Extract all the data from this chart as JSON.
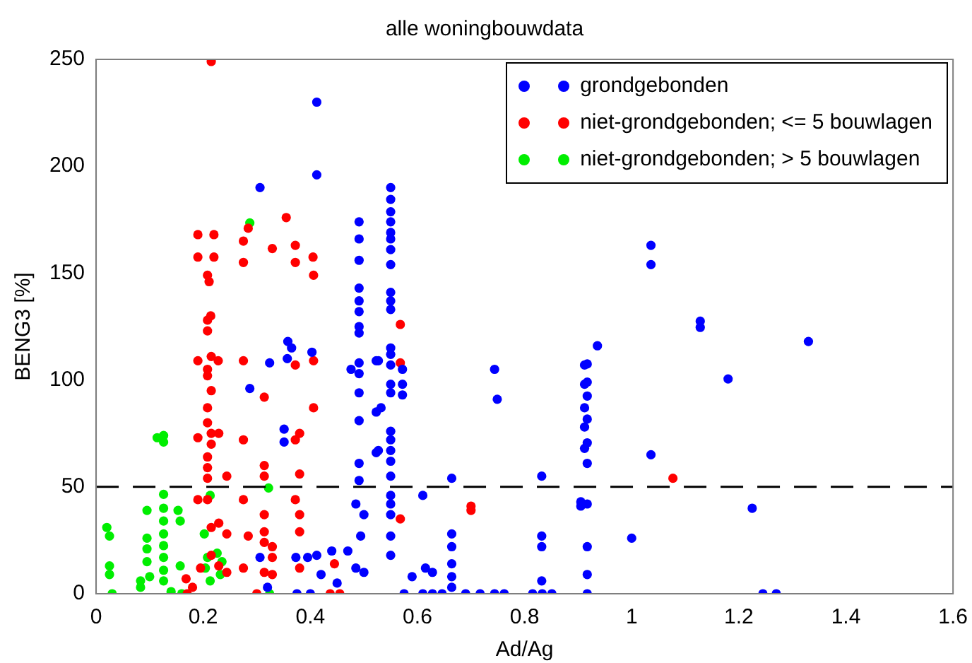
{
  "chart_data": {
    "type": "scatter",
    "title": "alle woningbouwdata",
    "xlabel": "Ad/Ag",
    "ylabel": "BENG3 [%]",
    "xlim": [
      0,
      1.6
    ],
    "xticks": [
      0,
      0.2,
      0.4,
      0.6,
      0.8,
      1,
      1.2,
      1.4,
      1.6
    ],
    "ylim": [
      0,
      250
    ],
    "yticks": [
      0,
      50,
      100,
      150,
      200,
      250
    ],
    "grid": false,
    "legend": "top right",
    "marker": "circle",
    "ref_lines": [
      {
        "axis": "y",
        "value": 50,
        "color": "#000000",
        "line_style": "dashed"
      }
    ],
    "series": [
      {
        "name": "grondgebonden",
        "color": "#0000ff",
        "x": [
          0.412,
          0.412,
          0.306,
          0.491,
          0.491,
          0.491,
          0.491,
          0.491,
          0.491,
          0.491,
          0.491,
          0.491,
          0.491,
          0.491,
          0.491,
          0.476,
          0.358,
          0.365,
          0.357,
          0.403,
          0.324,
          0.287,
          0.351,
          0.351,
          0.523,
          0.523,
          0.523,
          0.491,
          0.491,
          0.306,
          0.32,
          0.373,
          0.395,
          0.412,
          0.42,
          0.44,
          0.45,
          0.375,
          0.4,
          0.47,
          0.485,
          0.494,
          0.5,
          0.485,
          0.5,
          0.55,
          0.55,
          0.55,
          0.55,
          0.55,
          0.55,
          0.55,
          0.55,
          0.55,
          0.55,
          0.55,
          0.55,
          0.55,
          0.55,
          0.55,
          0.55,
          0.55,
          0.55,
          0.55,
          0.55,
          0.55,
          0.55,
          0.55,
          0.55,
          0.55,
          0.55,
          0.527,
          0.532,
          0.527,
          0.572,
          0.572,
          0.572,
          0.744,
          0.749,
          0.664,
          0.61,
          0.664,
          0.664,
          0.664,
          0.664,
          0.664,
          0.59,
          0.615,
          0.628,
          0.832,
          0.832,
          0.832,
          0.832,
          0.912,
          0.912,
          0.912,
          0.912,
          0.912,
          0.905,
          0.575,
          0.61,
          0.628,
          0.646,
          0.69,
          0.717,
          0.744,
          0.762,
          0.815,
          0.833,
          0.851,
          1.036,
          1.036,
          1.128,
          1.128,
          1.33,
          0.936,
          0.917,
          0.917,
          0.917,
          0.917,
          0.917,
          0.917,
          1.18,
          1.036,
          0.905,
          0.917,
          1.225,
          1.0,
          0.917,
          0.917,
          0.917,
          1.245,
          1.27
        ],
        "values": [
          230,
          196,
          190,
          174,
          166,
          156,
          143,
          137,
          132,
          125,
          122,
          108,
          103,
          94,
          81,
          105,
          118,
          115,
          110,
          113,
          108,
          96,
          77,
          71,
          109,
          85,
          66,
          61,
          53,
          17,
          3,
          17,
          17,
          18,
          9,
          20,
          5,
          0,
          0,
          20,
          12,
          27,
          10,
          42,
          37,
          190,
          184.5,
          178.7,
          174,
          169,
          166,
          161,
          154,
          141,
          137,
          133,
          115,
          112,
          107,
          98,
          94,
          76,
          72,
          67,
          62,
          55,
          46,
          42,
          37,
          27,
          18,
          109,
          87,
          67,
          105,
          98,
          93,
          105,
          91,
          54,
          46,
          28,
          22,
          14,
          8,
          3,
          8,
          12,
          10,
          55,
          27,
          22,
          6,
          107,
          98,
          87,
          78,
          68,
          43,
          0,
          0,
          0,
          0,
          0,
          0,
          0,
          0,
          0,
          0,
          0,
          163,
          154,
          127.5,
          124.6,
          118,
          116,
          107.5,
          99,
          92.5,
          81.7,
          70.6,
          61,
          100.5,
          65,
          41,
          42,
          40,
          26,
          22,
          9,
          0,
          0,
          0
        ]
      },
      {
        "name": "niet-grondgebonden; <= 5 bouwlagen",
        "color": "#ff0000",
        "x": [
          0.215,
          0.19,
          0.22,
          0.19,
          0.22,
          0.208,
          0.211,
          0.214,
          0.208,
          0.208,
          0.19,
          0.215,
          0.228,
          0.208,
          0.208,
          0.215,
          0.208,
          0.208,
          0.215,
          0.229,
          0.215,
          0.208,
          0.208,
          0.208,
          0.244,
          0.208,
          0.215,
          0.229,
          0.244,
          0.215,
          0.229,
          0.244,
          0.19,
          0.19,
          0.275,
          0.284,
          0.275,
          0.275,
          0.275,
          0.275,
          0.284,
          0.275,
          0.355,
          0.329,
          0.372,
          0.372,
          0.405,
          0.406,
          0.372,
          0.406,
          0.314,
          0.406,
          0.38,
          0.372,
          0.38,
          0.314,
          0.314,
          0.372,
          0.38,
          0.38,
          0.314,
          0.314,
          0.314,
          0.329,
          0.329,
          0.314,
          0.329,
          0.38,
          0.445,
          0.168,
          0.18,
          0.17,
          0.195,
          0.3,
          0.437,
          0.455,
          0.568,
          0.568,
          0.568,
          0.7,
          0.7,
          1.077
        ],
        "values": [
          249,
          168,
          168,
          157.5,
          157.5,
          149,
          146,
          130,
          128,
          123,
          109,
          111,
          109,
          105,
          102,
          95,
          87,
          80,
          75,
          75,
          70,
          64,
          59,
          54,
          55,
          44,
          31,
          33,
          28,
          18,
          13,
          10,
          73,
          44,
          165,
          171,
          155,
          109,
          72,
          44,
          27,
          12,
          176,
          161.5,
          163,
          155,
          157.5,
          149,
          107,
          109,
          92,
          87,
          75,
          72,
          56,
          60,
          55,
          44,
          37,
          29,
          37,
          29,
          24,
          22,
          17,
          10,
          9,
          12,
          14,
          7,
          3,
          0,
          12,
          0,
          0,
          0,
          126,
          108,
          35,
          41,
          39,
          54
        ]
      },
      {
        "name": "niet-grondgebonden; > 5 bouwlagen",
        "color": "#00ee00",
        "x": [
          0.02,
          0.025,
          0.025,
          0.025,
          0.03,
          0.114,
          0.126,
          0.126,
          0.126,
          0.126,
          0.126,
          0.126,
          0.126,
          0.126,
          0.126,
          0.126,
          0.095,
          0.095,
          0.095,
          0.095,
          0.083,
          0.083,
          0.1,
          0.153,
          0.157,
          0.157,
          0.14,
          0.16,
          0.287,
          0.213,
          0.202,
          0.208,
          0.226,
          0.235,
          0.204,
          0.232,
          0.213,
          0.322,
          0.324
        ],
        "values": [
          31,
          27,
          13,
          9,
          0,
          73,
          74,
          71,
          46.5,
          40,
          34,
          28,
          22.5,
          17,
          11,
          6,
          39,
          26,
          21,
          15,
          6,
          3,
          8,
          39,
          34,
          13,
          1,
          0,
          173.5,
          46,
          28,
          17,
          19,
          15,
          12,
          9,
          6,
          49.5,
          0
        ]
      }
    ]
  }
}
